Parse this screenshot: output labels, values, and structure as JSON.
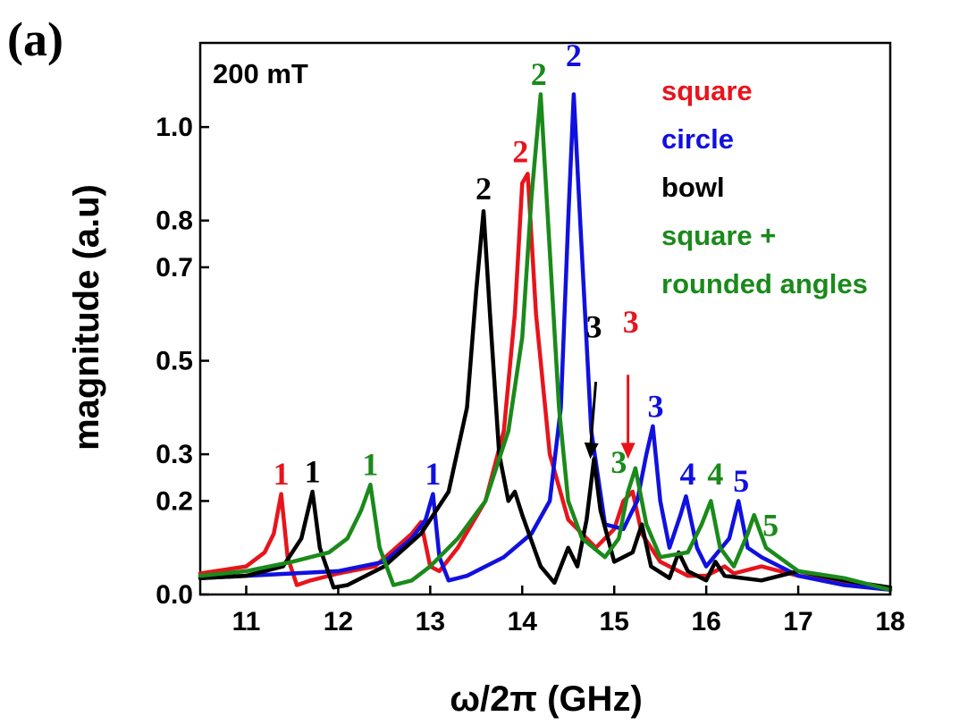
{
  "chart_data": {
    "type": "line",
    "panel_label": "(a)",
    "field_label": "200 mT",
    "xlabel": "ω/2π (GHz)",
    "ylabel": "magnitude (a.u)",
    "xlim": [
      10.5,
      18
    ],
    "ylim": [
      0,
      1.18
    ],
    "xticks": [
      11,
      12,
      13,
      14,
      15,
      16,
      17,
      18
    ],
    "yticks": [
      0.0,
      0.2,
      0.3,
      0.5,
      0.7,
      0.8,
      1.0
    ],
    "ytick_labels": [
      "0.0",
      "0.2",
      "0.3",
      "0.5",
      "0.7",
      "0.8",
      "1.0"
    ],
    "legend_position": "top-right",
    "series": [
      {
        "name": "square",
        "color": "#e8141c",
        "points": [
          [
            10.5,
            0.045
          ],
          [
            11.0,
            0.06
          ],
          [
            11.2,
            0.09
          ],
          [
            11.3,
            0.13
          ],
          [
            11.38,
            0.215
          ],
          [
            11.45,
            0.08
          ],
          [
            11.55,
            0.02
          ],
          [
            11.7,
            0.03
          ],
          [
            12.0,
            0.045
          ],
          [
            12.4,
            0.06
          ],
          [
            12.8,
            0.13
          ],
          [
            12.9,
            0.155
          ],
          [
            13.0,
            0.06
          ],
          [
            13.1,
            0.05
          ],
          [
            13.3,
            0.1
          ],
          [
            13.6,
            0.2
          ],
          [
            13.8,
            0.35
          ],
          [
            13.92,
            0.6
          ],
          [
            14.0,
            0.88
          ],
          [
            14.06,
            0.9
          ],
          [
            14.15,
            0.6
          ],
          [
            14.3,
            0.3
          ],
          [
            14.5,
            0.16
          ],
          [
            14.8,
            0.1
          ],
          [
            15.0,
            0.14
          ],
          [
            15.1,
            0.2
          ],
          [
            15.2,
            0.22
          ],
          [
            15.3,
            0.13
          ],
          [
            15.5,
            0.07
          ],
          [
            15.8,
            0.04
          ],
          [
            16.0,
            0.04
          ],
          [
            16.2,
            0.06
          ],
          [
            16.3,
            0.045
          ],
          [
            16.6,
            0.06
          ],
          [
            17.0,
            0.04
          ],
          [
            17.5,
            0.025
          ],
          [
            18.0,
            0.01
          ]
        ]
      },
      {
        "name": "circle",
        "color": "#1010e0",
        "points": [
          [
            10.5,
            0.035
          ],
          [
            11.0,
            0.04
          ],
          [
            11.5,
            0.045
          ],
          [
            12.0,
            0.05
          ],
          [
            12.5,
            0.07
          ],
          [
            12.8,
            0.12
          ],
          [
            12.95,
            0.16
          ],
          [
            13.03,
            0.215
          ],
          [
            13.1,
            0.08
          ],
          [
            13.2,
            0.03
          ],
          [
            13.4,
            0.04
          ],
          [
            13.8,
            0.08
          ],
          [
            14.1,
            0.13
          ],
          [
            14.3,
            0.2
          ],
          [
            14.42,
            0.4
          ],
          [
            14.5,
            0.8
          ],
          [
            14.56,
            1.07
          ],
          [
            14.63,
            0.8
          ],
          [
            14.75,
            0.35
          ],
          [
            14.9,
            0.15
          ],
          [
            15.1,
            0.14
          ],
          [
            15.25,
            0.2
          ],
          [
            15.35,
            0.3
          ],
          [
            15.42,
            0.36
          ],
          [
            15.5,
            0.2
          ],
          [
            15.6,
            0.1
          ],
          [
            15.72,
            0.17
          ],
          [
            15.78,
            0.21
          ],
          [
            15.9,
            0.1
          ],
          [
            16.0,
            0.06
          ],
          [
            16.25,
            0.12
          ],
          [
            16.35,
            0.2
          ],
          [
            16.45,
            0.1
          ],
          [
            16.6,
            0.08
          ],
          [
            17.0,
            0.04
          ],
          [
            17.5,
            0.02
          ],
          [
            18.0,
            0.01
          ]
        ]
      },
      {
        "name": "bowl",
        "color": "#000000",
        "points": [
          [
            10.5,
            0.035
          ],
          [
            11.0,
            0.04
          ],
          [
            11.4,
            0.06
          ],
          [
            11.6,
            0.12
          ],
          [
            11.72,
            0.22
          ],
          [
            11.8,
            0.1
          ],
          [
            11.95,
            0.015
          ],
          [
            12.1,
            0.02
          ],
          [
            12.5,
            0.06
          ],
          [
            12.9,
            0.13
          ],
          [
            13.2,
            0.22
          ],
          [
            13.4,
            0.4
          ],
          [
            13.5,
            0.65
          ],
          [
            13.58,
            0.82
          ],
          [
            13.65,
            0.6
          ],
          [
            13.75,
            0.3
          ],
          [
            13.85,
            0.2
          ],
          [
            13.92,
            0.22
          ],
          [
            14.0,
            0.17
          ],
          [
            14.2,
            0.06
          ],
          [
            14.35,
            0.025
          ],
          [
            14.5,
            0.1
          ],
          [
            14.6,
            0.06
          ],
          [
            14.7,
            0.16
          ],
          [
            14.78,
            0.29
          ],
          [
            14.85,
            0.18
          ],
          [
            15.0,
            0.07
          ],
          [
            15.2,
            0.09
          ],
          [
            15.3,
            0.15
          ],
          [
            15.4,
            0.06
          ],
          [
            15.6,
            0.035
          ],
          [
            15.7,
            0.09
          ],
          [
            15.8,
            0.05
          ],
          [
            16.0,
            0.03
          ],
          [
            16.1,
            0.07
          ],
          [
            16.2,
            0.04
          ],
          [
            16.6,
            0.03
          ],
          [
            17.0,
            0.05
          ],
          [
            17.5,
            0.03
          ],
          [
            18.0,
            0.015
          ]
        ]
      },
      {
        "name": "square + rounded angles",
        "color": "#1a8a1a",
        "points": [
          [
            10.5,
            0.04
          ],
          [
            11.0,
            0.05
          ],
          [
            11.5,
            0.07
          ],
          [
            11.9,
            0.09
          ],
          [
            12.1,
            0.12
          ],
          [
            12.25,
            0.18
          ],
          [
            12.35,
            0.235
          ],
          [
            12.45,
            0.1
          ],
          [
            12.6,
            0.02
          ],
          [
            12.8,
            0.03
          ],
          [
            13.0,
            0.06
          ],
          [
            13.3,
            0.12
          ],
          [
            13.6,
            0.2
          ],
          [
            13.85,
            0.35
          ],
          [
            14.0,
            0.55
          ],
          [
            14.1,
            0.85
          ],
          [
            14.2,
            1.07
          ],
          [
            14.28,
            0.8
          ],
          [
            14.4,
            0.4
          ],
          [
            14.5,
            0.2
          ],
          [
            14.65,
            0.12
          ],
          [
            14.9,
            0.08
          ],
          [
            15.05,
            0.12
          ],
          [
            15.15,
            0.22
          ],
          [
            15.23,
            0.27
          ],
          [
            15.35,
            0.15
          ],
          [
            15.5,
            0.08
          ],
          [
            15.8,
            0.09
          ],
          [
            15.95,
            0.15
          ],
          [
            16.05,
            0.2
          ],
          [
            16.15,
            0.1
          ],
          [
            16.3,
            0.06
          ],
          [
            16.45,
            0.13
          ],
          [
            16.52,
            0.17
          ],
          [
            16.65,
            0.1
          ],
          [
            17.0,
            0.05
          ],
          [
            17.5,
            0.035
          ],
          [
            18.0,
            0.01
          ]
        ]
      }
    ],
    "annotations": [
      {
        "text": "1",
        "x": 11.38,
        "y": 0.235,
        "series": "square"
      },
      {
        "text": "1",
        "x": 11.72,
        "y": 0.24,
        "series": "bowl"
      },
      {
        "text": "1",
        "x": 12.35,
        "y": 0.255,
        "series": "square + rounded angles"
      },
      {
        "text": "1",
        "x": 13.03,
        "y": 0.235,
        "series": "circle"
      },
      {
        "text": "2",
        "x": 13.58,
        "y": 0.845,
        "series": "bowl"
      },
      {
        "text": "2",
        "x": 13.98,
        "y": 0.925,
        "series": "square"
      },
      {
        "text": "2",
        "x": 14.18,
        "y": 1.09,
        "series": "square + rounded angles"
      },
      {
        "text": "2",
        "x": 14.56,
        "y": 1.13,
        "series": "circle"
      },
      {
        "text": "3",
        "x": 14.78,
        "y": 0.55,
        "series": "bowl"
      },
      {
        "text": "3",
        "x": 15.18,
        "y": 0.56,
        "series": "square"
      },
      {
        "text": "3",
        "x": 15.45,
        "y": 0.38,
        "series": "circle"
      },
      {
        "text": "3",
        "x": 15.05,
        "y": 0.26,
        "series": "square + rounded angles"
      },
      {
        "text": "4",
        "x": 15.8,
        "y": 0.235,
        "series": "circle"
      },
      {
        "text": "4",
        "x": 16.1,
        "y": 0.235,
        "series": "square + rounded angles"
      },
      {
        "text": "5",
        "x": 16.38,
        "y": 0.22,
        "series": "circle"
      },
      {
        "text": "5",
        "x": 16.7,
        "y": 0.125,
        "series": "square + rounded angles"
      }
    ],
    "arrows": [
      {
        "series": "bowl",
        "from": [
          14.8,
          0.455
        ],
        "to": [
          14.74,
          0.29
        ]
      },
      {
        "series": "square",
        "from": [
          15.15,
          0.47
        ],
        "to": [
          15.15,
          0.29
        ]
      }
    ],
    "legend": [
      "square",
      "circle",
      "bowl",
      "square +",
      "rounded angles"
    ]
  }
}
